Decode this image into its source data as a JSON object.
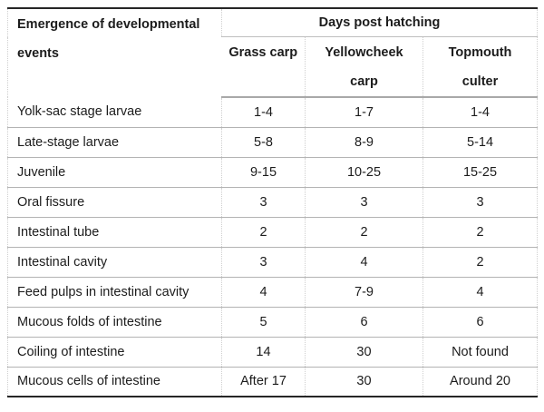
{
  "table": {
    "corner_header": "Emergence of developmental events",
    "group_header": "Days post hatching",
    "columns": [
      "Grass carp",
      "Yellowcheek carp",
      "Topmouth culter"
    ],
    "rows": [
      {
        "event": "Yolk-sac stage larvae",
        "values": [
          "1-4",
          "1-7",
          "1-4"
        ]
      },
      {
        "event": "Late-stage larvae",
        "values": [
          "5-8",
          "8-9",
          "5-14"
        ]
      },
      {
        "event": "Juvenile",
        "values": [
          "9-15",
          "10-25",
          "15-25"
        ]
      },
      {
        "event": "Oral fissure",
        "values": [
          "3",
          "3",
          "3"
        ]
      },
      {
        "event": "Intestinal tube",
        "values": [
          "2",
          "2",
          "2"
        ]
      },
      {
        "event": "Intestinal cavity",
        "values": [
          "3",
          "4",
          "2"
        ]
      },
      {
        "event": "Feed pulps in intestinal cavity",
        "values": [
          "4",
          "7-9",
          "4"
        ]
      },
      {
        "event": "Mucous folds of intestine",
        "values": [
          "5",
          "6",
          "6"
        ]
      },
      {
        "event": "Coiling of intestine",
        "values": [
          "14",
          "30",
          "Not found"
        ]
      },
      {
        "event": "Mucous cells of intestine",
        "values": [
          "After 17",
          "30",
          "Around 20"
        ]
      }
    ],
    "colors": {
      "text": "#1c1c1c",
      "strong_border": "#262626",
      "row_border": "#b3b3b3",
      "dotted_border": "#cfcfcf",
      "background": "#ffffff"
    }
  }
}
